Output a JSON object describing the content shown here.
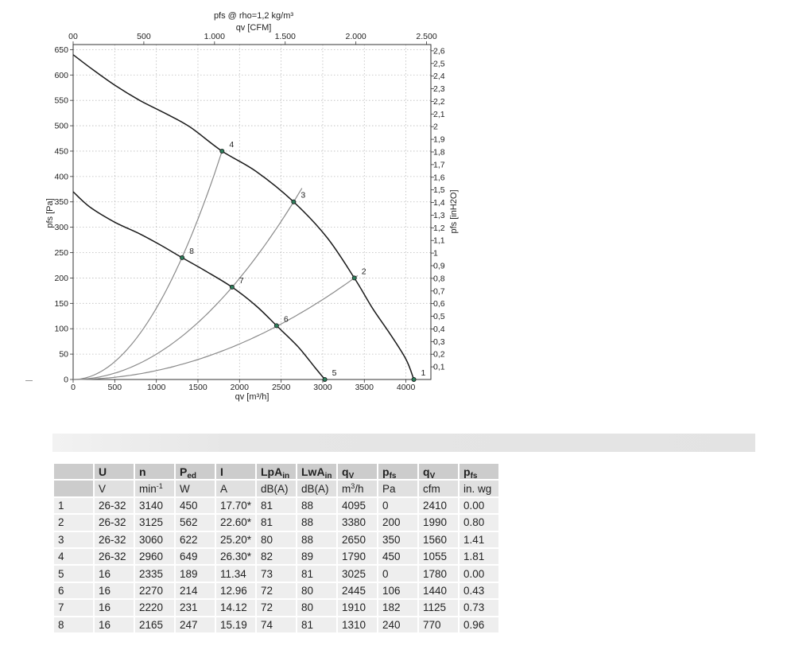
{
  "chart_data": {
    "type": "line",
    "title": "pfs @ rho=1,2 kg/m³",
    "top_axis": {
      "label": "qv [CFM]",
      "ticks": [
        0,
        500,
        1000,
        1500,
        2000,
        2500
      ],
      "tick_labels": [
        "00",
        "500",
        "1.000",
        "1.500",
        "2.000",
        "2.500"
      ],
      "cfm_per_m3h": 0.5885
    },
    "x_axis": {
      "label": "qv [m³/h]",
      "range": [
        0,
        4300
      ],
      "ticks": [
        0,
        500,
        1000,
        1500,
        2000,
        2500,
        3000,
        3500,
        4000
      ]
    },
    "y_axis": {
      "label": "pfs [Pa]",
      "range": [
        0,
        660
      ],
      "ticks": [
        0,
        50,
        100,
        150,
        200,
        250,
        300,
        350,
        400,
        450,
        500,
        550,
        600,
        650
      ]
    },
    "right_axis": {
      "label": "pfs [inH2O]",
      "tick_labels": [
        "0,1",
        "0,2",
        "0,3",
        "0,4",
        "0,5",
        "0,6",
        "0,7",
        "0,8",
        "0,9",
        "1",
        "1,1",
        "1,2",
        "1,3",
        "1,4",
        "1,5",
        "1,6",
        "1,7",
        "1,8",
        "1,9",
        "2",
        "2,1",
        "2,2",
        "2,3",
        "2,4",
        "2,5",
        "2,6"
      ],
      "pa_per_unit": 249.1
    },
    "grid": true,
    "series": [
      {
        "color": "#1a1a1a",
        "kind": "fan-curve",
        "x": [
          0,
          200,
          500,
          800,
          1100,
          1400,
          1790,
          2200,
          2650,
          3050,
          3380,
          3600,
          3800,
          4000,
          4095
        ],
        "y": [
          640,
          615,
          580,
          550,
          525,
          498,
          450,
          410,
          350,
          280,
          200,
          140,
          92,
          40,
          0
        ]
      },
      {
        "color": "#1a1a1a",
        "kind": "fan-curve",
        "x": [
          0,
          200,
          500,
          800,
          1050,
          1310,
          1600,
          1910,
          2200,
          2445,
          2700,
          2900,
          3025
        ],
        "y": [
          370,
          340,
          310,
          287,
          265,
          240,
          213,
          182,
          145,
          106,
          65,
          25,
          0
        ]
      },
      {
        "color": "#8a8a8a",
        "kind": "system-line",
        "x": [
          0,
          1790
        ],
        "y": [
          0,
          450
        ],
        "extend_to_x": 1790
      },
      {
        "color": "#8a8a8a",
        "kind": "system-line",
        "x": [
          0,
          2650
        ],
        "y": [
          0,
          350
        ],
        "extend_to_x": 2750
      },
      {
        "color": "#8a8a8a",
        "kind": "system-line",
        "x": [
          0,
          3380
        ],
        "y": [
          0,
          200
        ],
        "extend_to_x": 3420
      }
    ],
    "points": [
      {
        "label": "1",
        "x": 4095,
        "y": 0
      },
      {
        "label": "2",
        "x": 3380,
        "y": 200
      },
      {
        "label": "3",
        "x": 2650,
        "y": 350
      },
      {
        "label": "4",
        "x": 1790,
        "y": 450
      },
      {
        "label": "5",
        "x": 3025,
        "y": 0
      },
      {
        "label": "6",
        "x": 2445,
        "y": 106
      },
      {
        "label": "7",
        "x": 1910,
        "y": 182
      },
      {
        "label": "8",
        "x": 1310,
        "y": 240
      }
    ]
  },
  "table": {
    "header_symbols": [
      {
        "main": "U",
        "sub": ""
      },
      {
        "main": "n",
        "sub": ""
      },
      {
        "main": "P",
        "sub": "ed"
      },
      {
        "main": "I",
        "sub": ""
      },
      {
        "main": "LpA",
        "sub": "in"
      },
      {
        "main": "LwA",
        "sub": "in"
      },
      {
        "main": "q",
        "sub": "V"
      },
      {
        "main": "p",
        "sub": "fs"
      },
      {
        "main": "q",
        "sub": "V"
      },
      {
        "main": "p",
        "sub": "fs"
      }
    ],
    "header_units": [
      {
        "main": "V",
        "sup": ""
      },
      {
        "main": "min",
        "sup": "-1"
      },
      {
        "main": "W",
        "sup": ""
      },
      {
        "main": "A",
        "sup": ""
      },
      {
        "main": "dB(A)",
        "sup": ""
      },
      {
        "main": "dB(A)",
        "sup": ""
      },
      {
        "main": "m",
        "sup": "3",
        "tail": "/h"
      },
      {
        "main": "Pa",
        "sup": ""
      },
      {
        "main": "cfm",
        "sup": ""
      },
      {
        "main": "in. wg",
        "sup": ""
      }
    ],
    "rows": [
      [
        "1",
        "26-32",
        "3140",
        "450",
        "17.70*",
        "81",
        "88",
        "4095",
        "0",
        "2410",
        "0.00"
      ],
      [
        "2",
        "26-32",
        "3125",
        "562",
        "22.60*",
        "81",
        "88",
        "3380",
        "200",
        "1990",
        "0.80"
      ],
      [
        "3",
        "26-32",
        "3060",
        "622",
        "25.20*",
        "80",
        "88",
        "2650",
        "350",
        "1560",
        "1.41"
      ],
      [
        "4",
        "26-32",
        "2960",
        "649",
        "26.30*",
        "82",
        "89",
        "1790",
        "450",
        "1055",
        "1.81"
      ],
      [
        "5",
        "16",
        "2335",
        "189",
        "11.34",
        "73",
        "81",
        "3025",
        "0",
        "1780",
        "0.00"
      ],
      [
        "6",
        "16",
        "2270",
        "214",
        "12.96",
        "72",
        "80",
        "2445",
        "106",
        "1440",
        "0.43"
      ],
      [
        "7",
        "16",
        "2220",
        "231",
        "14.12",
        "72",
        "80",
        "1910",
        "182",
        "1125",
        "0.73"
      ],
      [
        "8",
        "16",
        "2165",
        "247",
        "15.19",
        "74",
        "81",
        "1310",
        "240",
        "770",
        "0.96"
      ]
    ]
  }
}
